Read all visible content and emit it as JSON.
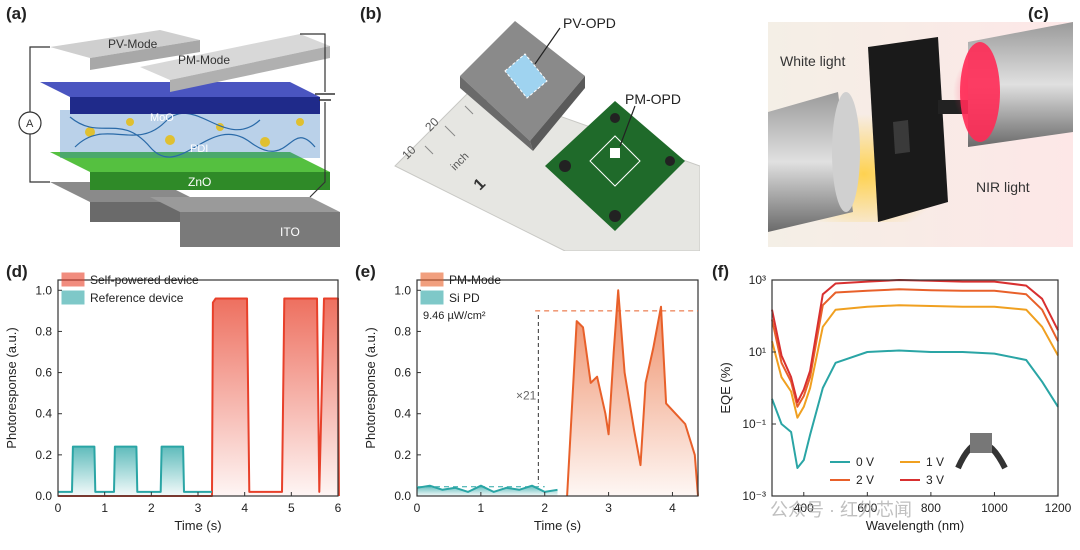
{
  "panels": {
    "a": {
      "label": "(a)",
      "layers": [
        "PV-Mode",
        "PM-Mode",
        "MoO",
        "ZnO",
        "ITO"
      ],
      "meter": "A"
    },
    "b": {
      "label": "(b)",
      "callouts": [
        "PV-OPD",
        "PM-OPD"
      ],
      "ruler_marks": [
        "10",
        "20",
        "inch",
        "1"
      ]
    },
    "c": {
      "label": "(c)",
      "callouts": [
        "White light",
        "NIR light"
      ]
    },
    "d": {
      "label": "(d)"
    },
    "e": {
      "label": "(e)"
    },
    "f": {
      "label": "(f)"
    }
  },
  "chart_data": [
    {
      "id": "d",
      "type": "line",
      "xlabel": "Time (s)",
      "ylabel": "Photoresponse (a.u.)",
      "xlim": [
        0,
        6
      ],
      "ylim": [
        0,
        1.05
      ],
      "xticks": [
        "0",
        "1",
        "2",
        "3",
        "4",
        "5",
        "6"
      ],
      "yticks": [
        "0.0",
        "0.2",
        "0.4",
        "0.6",
        "0.8",
        "1.0"
      ],
      "legend_position": "top-left",
      "series": [
        {
          "name": "Self-powered device",
          "color": "#e8402a",
          "x": [
            0,
            3.3,
            3.32,
            3.38,
            4.05,
            4.1,
            4.2,
            4.8,
            4.85,
            4.95,
            5.55,
            5.6,
            5.7,
            6.0,
            6.02
          ],
          "y": [
            0.0,
            0.0,
            0.94,
            0.96,
            0.96,
            0.02,
            0.02,
            0.02,
            0.96,
            0.96,
            0.96,
            0.02,
            0.96,
            0.96,
            0.0
          ]
        },
        {
          "name": "Reference device",
          "color": "#2aa5a5",
          "x": [
            0,
            0.3,
            0.32,
            0.78,
            0.8,
            1.2,
            1.22,
            1.68,
            1.7,
            2.2,
            2.22,
            2.68,
            2.7,
            3.3
          ],
          "y": [
            0.02,
            0.02,
            0.24,
            0.24,
            0.02,
            0.02,
            0.24,
            0.24,
            0.02,
            0.02,
            0.24,
            0.24,
            0.02,
            0.02
          ]
        }
      ]
    },
    {
      "id": "e",
      "type": "line",
      "xlabel": "Time (s)",
      "ylabel": "Photoresponse (a.u.)",
      "xlim": [
        0,
        4.4
      ],
      "ylim": [
        0,
        1.05
      ],
      "xticks": [
        "0",
        "1",
        "2",
        "3",
        "4"
      ],
      "yticks": [
        "0.0",
        "0.2",
        "0.4",
        "0.6",
        "0.8",
        "1.0"
      ],
      "legend_position": "top-left",
      "annotations": [
        "9.46 µW/cm²",
        "×21"
      ],
      "series": [
        {
          "name": "PM-Mode",
          "color": "#e8602a",
          "x": [
            2.35,
            2.5,
            2.6,
            2.72,
            2.82,
            2.95,
            3.0,
            3.08,
            3.15,
            3.25,
            3.4,
            3.5,
            3.58,
            3.7,
            3.82,
            3.9,
            4.05,
            4.2,
            4.35,
            4.4
          ],
          "y": [
            0.0,
            0.85,
            0.82,
            0.55,
            0.58,
            0.4,
            0.3,
            0.7,
            1.0,
            0.6,
            0.32,
            0.15,
            0.55,
            0.72,
            0.92,
            0.45,
            0.4,
            0.35,
            0.2,
            0.0
          ]
        },
        {
          "name": "Si PD",
          "color": "#2aa5a5",
          "x": [
            0,
            0.2,
            0.4,
            0.6,
            0.8,
            1.0,
            1.2,
            1.4,
            1.6,
            1.8,
            2.0,
            2.2
          ],
          "y": [
            0.04,
            0.05,
            0.03,
            0.04,
            0.02,
            0.05,
            0.02,
            0.04,
            0.03,
            0.05,
            0.02,
            0.03
          ]
        }
      ]
    },
    {
      "id": "f",
      "type": "line",
      "xlabel": "Wavelength (nm)",
      "ylabel": "EQE (%)",
      "xlim": [
        300,
        1200
      ],
      "ylim": [
        0.001,
        1000
      ],
      "yscale": "log",
      "xticks": [
        "400",
        "600",
        "800",
        "1000",
        "1200"
      ],
      "yticks": [
        "10⁻³",
        "10⁻¹",
        "10¹",
        "10³"
      ],
      "legend_position": "bottom-center",
      "series": [
        {
          "name": "0 V",
          "color": "#2aa5a5",
          "x": [
            300,
            330,
            360,
            380,
            400,
            420,
            460,
            500,
            600,
            700,
            800,
            900,
            1000,
            1100,
            1150,
            1200
          ],
          "y": [
            0.5,
            0.1,
            0.06,
            0.006,
            0.01,
            0.05,
            1,
            5,
            10,
            11,
            10,
            10,
            9,
            6,
            1.5,
            0.3
          ]
        },
        {
          "name": "1 V",
          "color": "#f0a020",
          "x": [
            300,
            330,
            360,
            380,
            400,
            420,
            460,
            500,
            600,
            700,
            800,
            900,
            1000,
            1100,
            1150,
            1200
          ],
          "y": [
            20,
            2,
            0.8,
            0.15,
            0.3,
            1,
            50,
            150,
            180,
            200,
            190,
            180,
            180,
            150,
            50,
            8
          ]
        },
        {
          "name": "2 V",
          "color": "#e8602a",
          "x": [
            300,
            330,
            360,
            380,
            400,
            420,
            460,
            500,
            600,
            700,
            800,
            900,
            1000,
            1100,
            1150,
            1200
          ],
          "y": [
            80,
            5,
            1.5,
            0.3,
            0.6,
            2,
            200,
            450,
            500,
            550,
            520,
            500,
            500,
            400,
            150,
            20
          ]
        },
        {
          "name": "3 V",
          "color": "#d83030",
          "x": [
            300,
            330,
            360,
            380,
            400,
            420,
            460,
            500,
            600,
            700,
            800,
            900,
            1000,
            1100,
            1150,
            1200
          ],
          "y": [
            150,
            8,
            2,
            0.4,
            0.9,
            3,
            400,
            800,
            900,
            1000,
            950,
            900,
            900,
            700,
            300,
            40
          ]
        }
      ]
    }
  ],
  "watermark": "公众号 · 红外芯闻"
}
